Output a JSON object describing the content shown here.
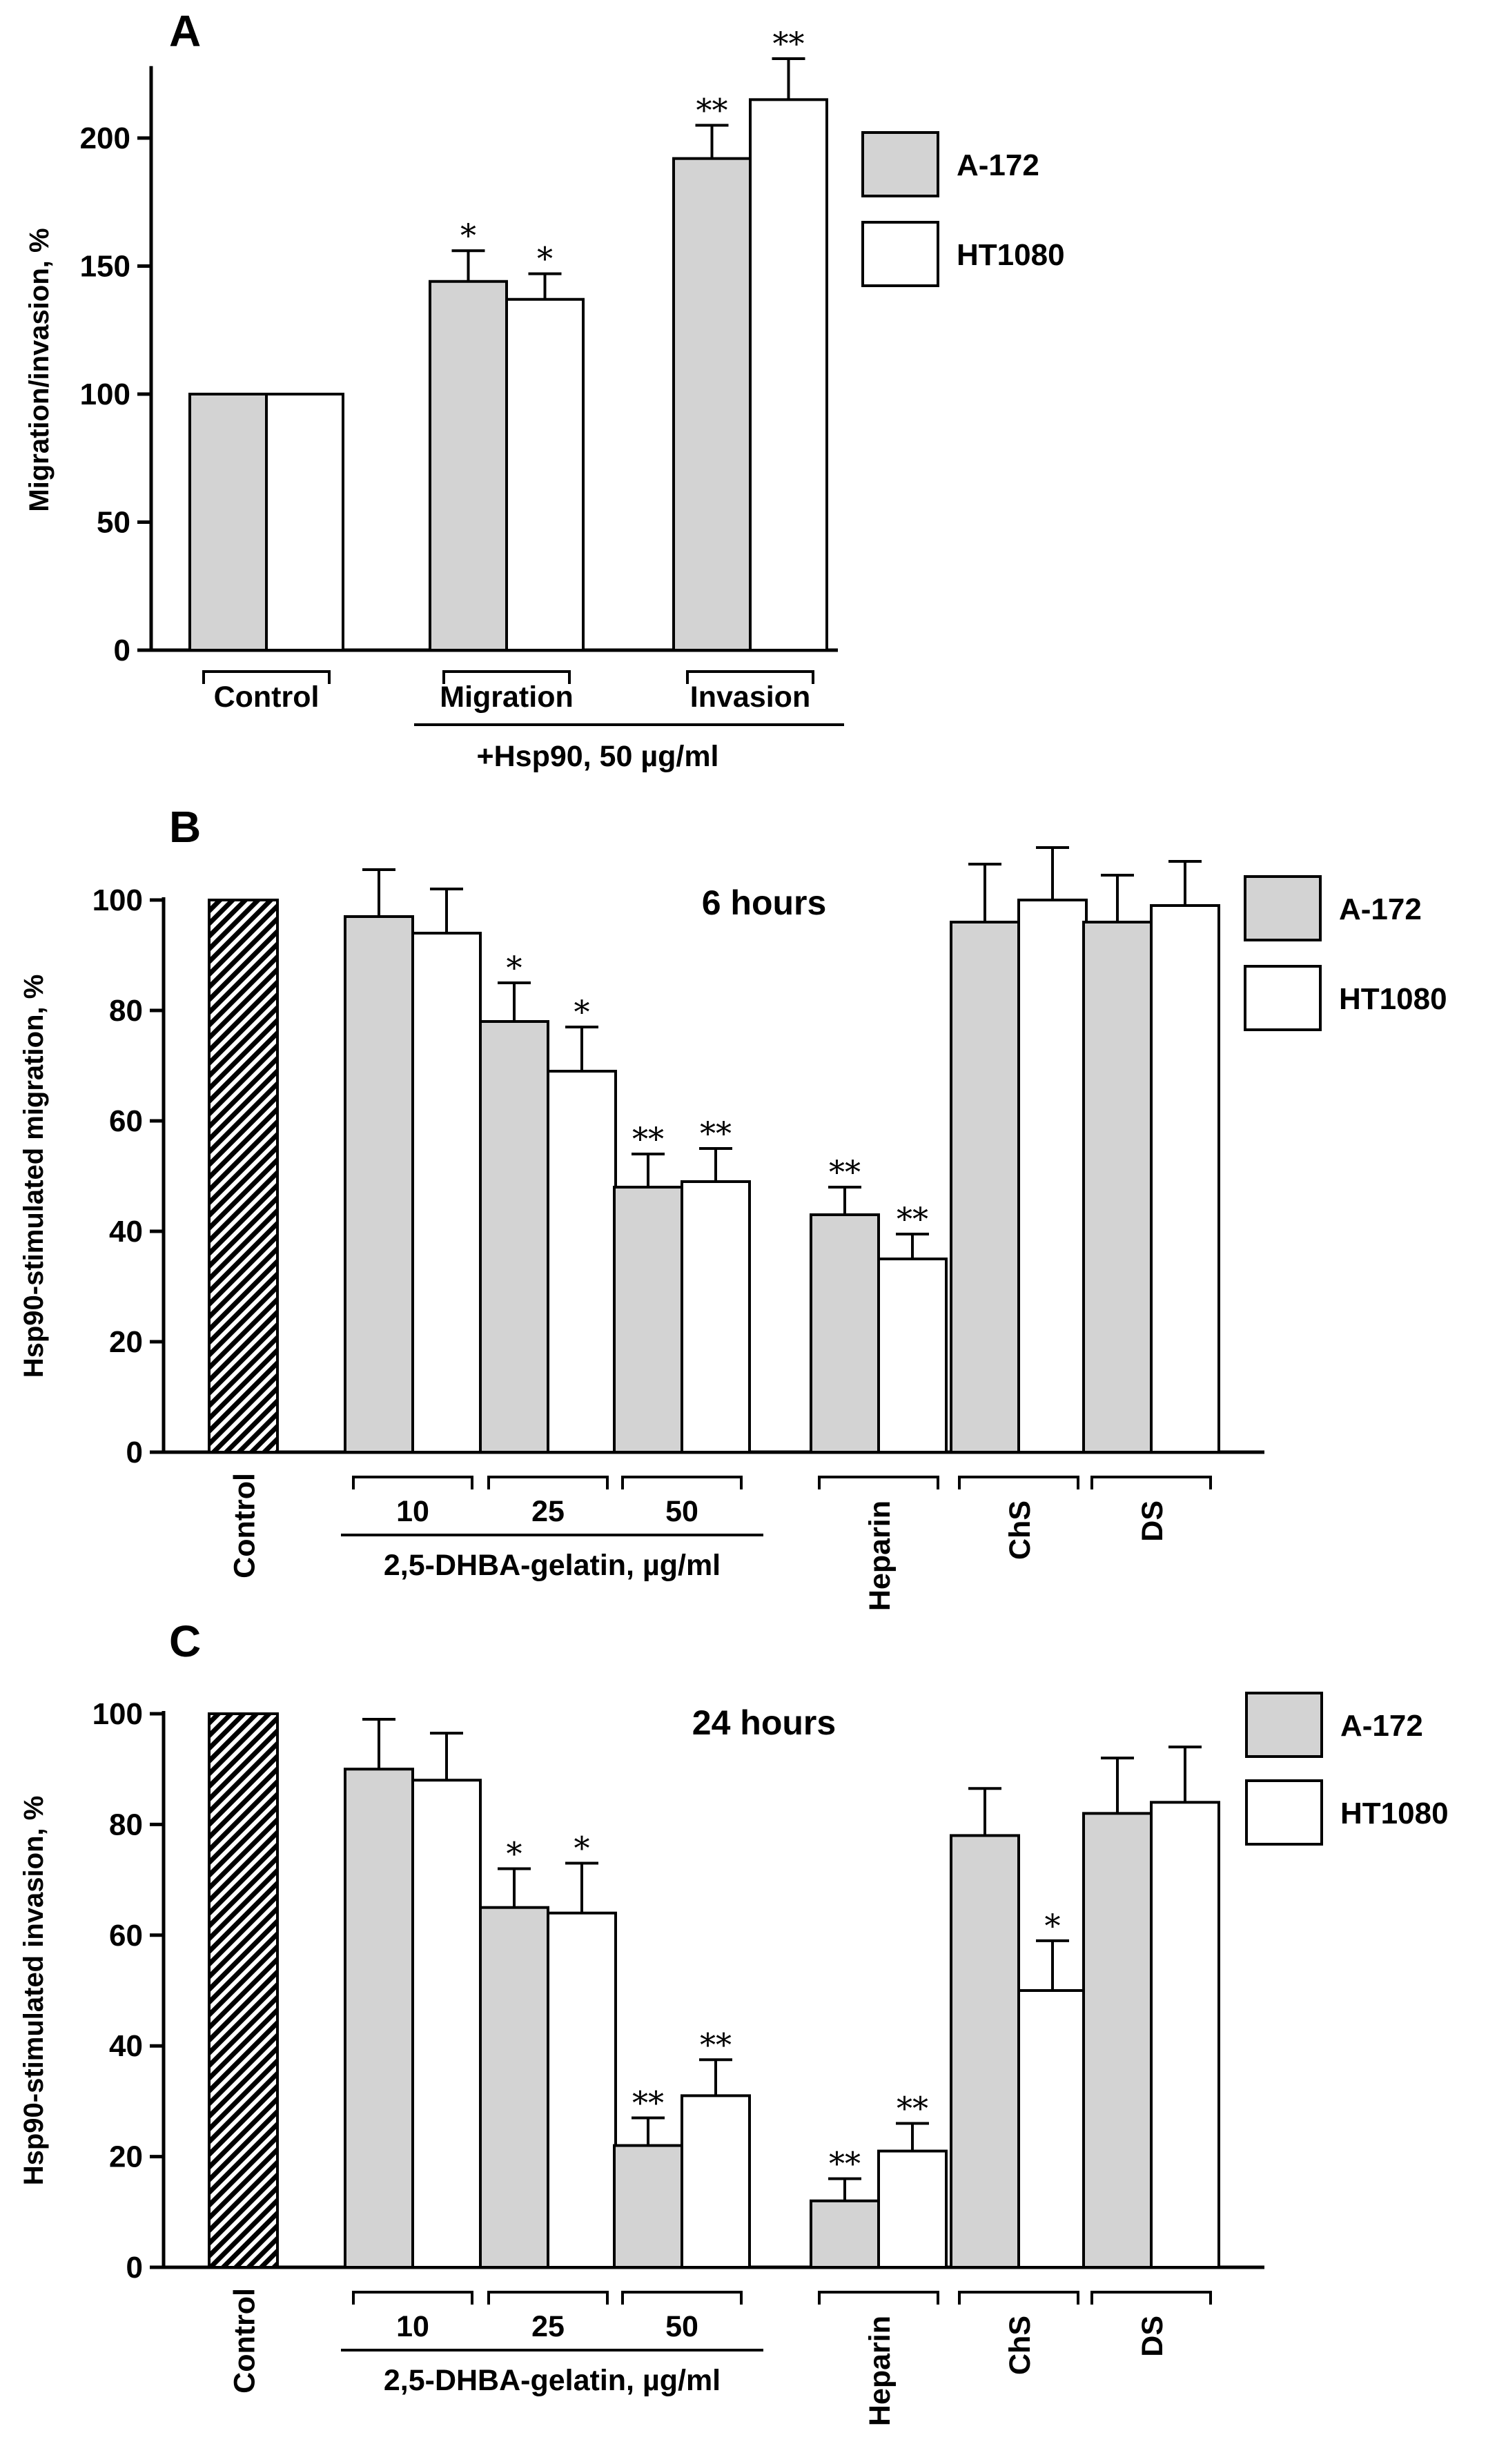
{
  "colors": {
    "a172": "#d3d3d3",
    "ht1080": "#ffffff",
    "stroke": "#000000"
  },
  "chart_data": [
    {
      "type": "bar",
      "panel": "A",
      "ylabel": "Migration/invasion, %",
      "ylim": [
        0,
        220
      ],
      "yticks": [
        0,
        50,
        100,
        150,
        200
      ],
      "series_names": [
        "A-172",
        "HT1080"
      ],
      "groups": [
        {
          "label": "Control",
          "bars": [
            {
              "series": "A-172",
              "value": 100,
              "err": 0,
              "sig": ""
            },
            {
              "series": "HT1080",
              "value": 100,
              "err": 0,
              "sig": ""
            }
          ]
        },
        {
          "label": "Migration",
          "bars": [
            {
              "series": "A-172",
              "value": 144,
              "err": 12,
              "sig": "*"
            },
            {
              "series": "HT1080",
              "value": 137,
              "err": 10,
              "sig": "*"
            }
          ]
        },
        {
          "label": "Invasion",
          "bars": [
            {
              "series": "A-172",
              "value": 192,
              "err": 13,
              "sig": "**"
            },
            {
              "series": "HT1080",
              "value": 215,
              "err": 16,
              "sig": "**"
            }
          ]
        }
      ],
      "super_label": "+Hsp90, 50 µg/ml"
    },
    {
      "type": "bar",
      "panel": "B",
      "title": "6 hours",
      "ylabel": "Hsp90-stimulated migration, %",
      "ylim": [
        0,
        100
      ],
      "yticks": [
        0,
        20,
        40,
        60,
        80,
        100
      ],
      "series_names": [
        "A-172",
        "HT1080"
      ],
      "control": {
        "label": "Control",
        "value": 100
      },
      "groups": [
        {
          "label": "10",
          "bars": [
            {
              "series": "A-172",
              "value": 97,
              "err": 8.5,
              "sig": ""
            },
            {
              "series": "HT1080",
              "value": 94,
              "err": 8,
              "sig": ""
            }
          ]
        },
        {
          "label": "25",
          "bars": [
            {
              "series": "A-172",
              "value": 78,
              "err": 7,
              "sig": "*"
            },
            {
              "series": "HT1080",
              "value": 69,
              "err": 8,
              "sig": "*"
            }
          ]
        },
        {
          "label": "50",
          "bars": [
            {
              "series": "A-172",
              "value": 48,
              "err": 6,
              "sig": "**"
            },
            {
              "series": "HT1080",
              "value": 49,
              "err": 6,
              "sig": "**"
            }
          ]
        },
        {
          "label": "Heparin",
          "bars": [
            {
              "series": "A-172",
              "value": 43,
              "err": 5,
              "sig": "**"
            },
            {
              "series": "HT1080",
              "value": 35,
              "err": 4.5,
              "sig": "**"
            }
          ]
        },
        {
          "label": "ChS",
          "bars": [
            {
              "series": "A-172",
              "value": 96,
              "err": 10.5,
              "sig": ""
            },
            {
              "series": "HT1080",
              "value": 100,
              "err": 9.5,
              "sig": ""
            }
          ]
        },
        {
          "label": "DS",
          "bars": [
            {
              "series": "A-172",
              "value": 96,
              "err": 8.5,
              "sig": ""
            },
            {
              "series": "HT1080",
              "value": 99,
              "err": 8,
              "sig": ""
            }
          ]
        }
      ],
      "super_label": "2,5-DHBA-gelatin, µg/ml"
    },
    {
      "type": "bar",
      "panel": "C",
      "title": "24 hours",
      "ylabel": "Hsp90-stimulated invasion, %",
      "ylim": [
        0,
        100
      ],
      "yticks": [
        0,
        20,
        40,
        60,
        80,
        100
      ],
      "series_names": [
        "A-172",
        "HT1080"
      ],
      "control": {
        "label": "Control",
        "value": 100
      },
      "groups": [
        {
          "label": "10",
          "bars": [
            {
              "series": "A-172",
              "value": 90,
              "err": 9,
              "sig": ""
            },
            {
              "series": "HT1080",
              "value": 88,
              "err": 8.5,
              "sig": ""
            }
          ]
        },
        {
          "label": "25",
          "bars": [
            {
              "series": "A-172",
              "value": 65,
              "err": 7,
              "sig": "*"
            },
            {
              "series": "HT1080",
              "value": 64,
              "err": 9,
              "sig": "*"
            }
          ]
        },
        {
          "label": "50",
          "bars": [
            {
              "series": "A-172",
              "value": 22,
              "err": 5,
              "sig": "**"
            },
            {
              "series": "HT1080",
              "value": 31,
              "err": 6.5,
              "sig": "**"
            }
          ]
        },
        {
          "label": "Heparin",
          "bars": [
            {
              "series": "A-172",
              "value": 12,
              "err": 4,
              "sig": "**"
            },
            {
              "series": "HT1080",
              "value": 21,
              "err": 5,
              "sig": "**"
            }
          ]
        },
        {
          "label": "ChS",
          "bars": [
            {
              "series": "A-172",
              "value": 78,
              "err": 8.5,
              "sig": ""
            },
            {
              "series": "HT1080",
              "value": 50,
              "err": 9,
              "sig": "*"
            }
          ]
        },
        {
          "label": "DS",
          "bars": [
            {
              "series": "A-172",
              "value": 82,
              "err": 10,
              "sig": ""
            },
            {
              "series": "HT1080",
              "value": 84,
              "err": 10,
              "sig": ""
            }
          ]
        }
      ],
      "super_label": "2,5-DHBA-gelatin, µg/ml"
    }
  ]
}
